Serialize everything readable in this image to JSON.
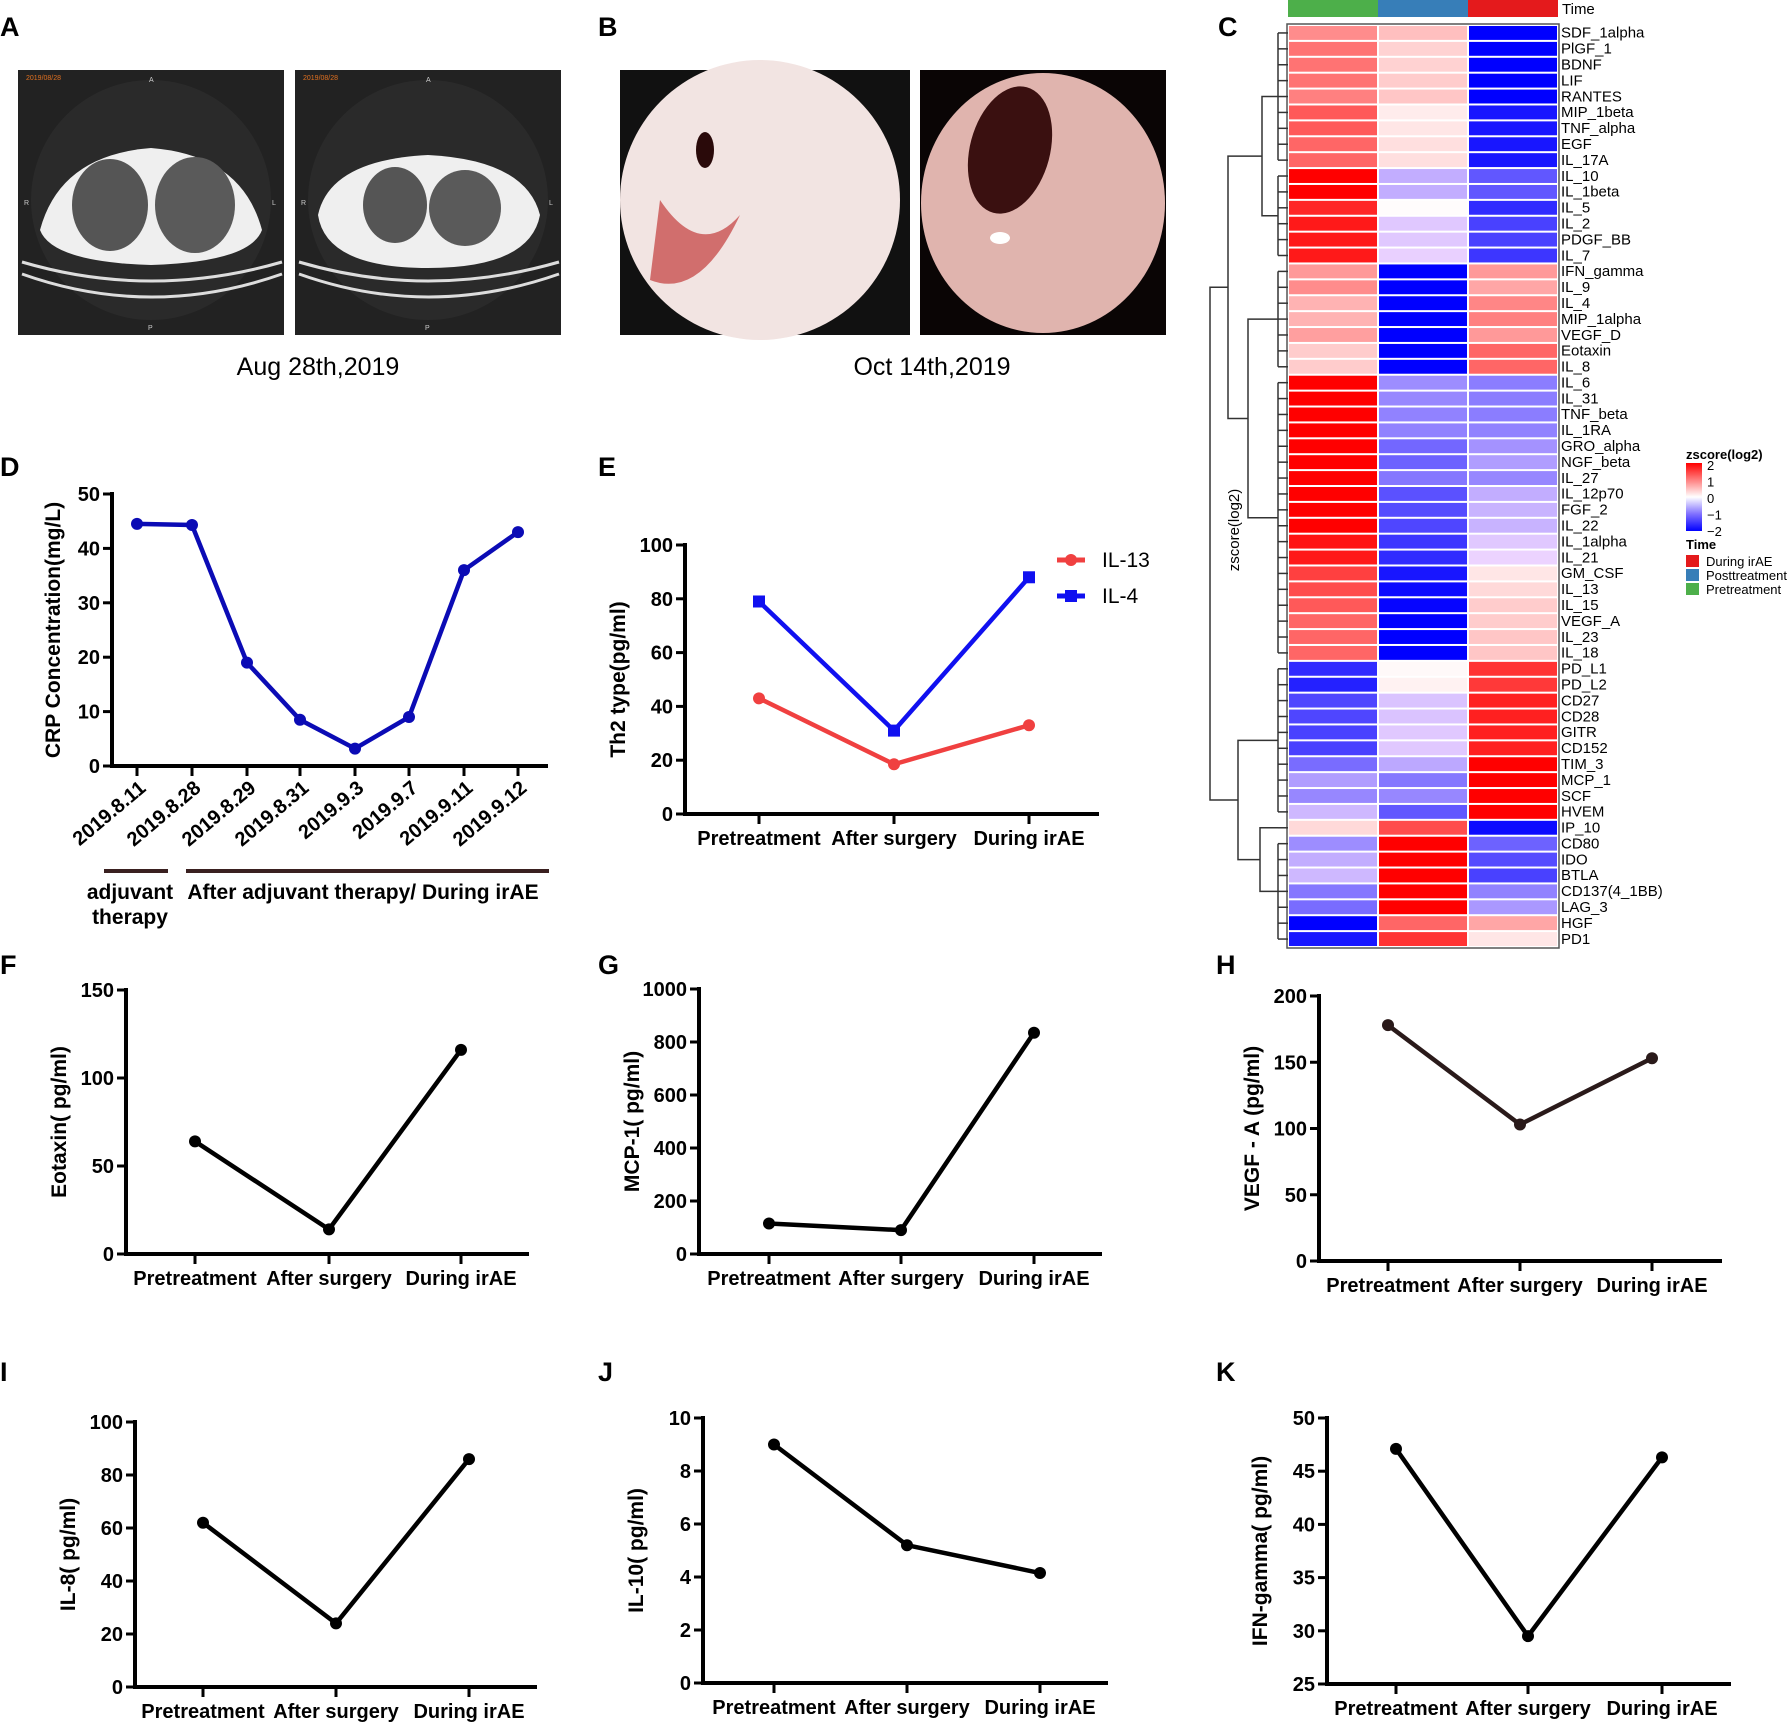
{
  "panels": {
    "A": "A",
    "B": "B",
    "C": "C",
    "D": "D",
    "E": "E",
    "F": "F",
    "G": "G",
    "H": "H",
    "I": "I",
    "J": "J",
    "K": "K"
  },
  "panel_a": {
    "caption": "Aug 28th,2019",
    "ct_stamp": "2019/08/28",
    "orient": {
      "top": "A",
      "bottom": "P",
      "left": "R",
      "right": "L"
    }
  },
  "panel_b": {
    "caption": "Oct 14th,2019"
  },
  "heatmap": {
    "time_header": "Time",
    "side_label": "zscore(log2)",
    "columns": [
      "Pretreatment",
      "Posttreatment",
      "During irAE"
    ],
    "column_colors": [
      "#4daf4a",
      "#377eb8",
      "#e41a1c"
    ],
    "legend_title": "zscore(log2)",
    "legend_ticks": [
      "2",
      "1",
      "0",
      "−1",
      "−2"
    ],
    "time_legend_title": "Time",
    "time_legend": [
      {
        "label": "During irAE",
        "color": "#e41a1c"
      },
      {
        "label": "Posttreatment",
        "color": "#377eb8"
      },
      {
        "label": "Pretreatment",
        "color": "#4daf4a"
      }
    ],
    "rows": [
      {
        "name": "SDF_1alpha",
        "z": [
          0.9,
          0.5,
          -2
        ]
      },
      {
        "name": "PlGF_1",
        "z": [
          1.1,
          0.35,
          -2
        ]
      },
      {
        "name": "BDNF",
        "z": [
          1.1,
          0.35,
          -2
        ]
      },
      {
        "name": "LIF",
        "z": [
          1.1,
          0.4,
          -2
        ]
      },
      {
        "name": "RANTES",
        "z": [
          1.0,
          0.45,
          -2
        ]
      },
      {
        "name": "MIP_1beta",
        "z": [
          1.3,
          0.15,
          -1.8
        ]
      },
      {
        "name": "TNF_alpha",
        "z": [
          1.3,
          0.2,
          -1.8
        ]
      },
      {
        "name": "EGF",
        "z": [
          1.2,
          0.25,
          -1.8
        ]
      },
      {
        "name": "IL_17A",
        "z": [
          1.2,
          0.25,
          -1.8
        ]
      },
      {
        "name": "IL_10",
        "z": [
          2,
          -0.4,
          -1.2
        ]
      },
      {
        "name": "IL_1beta",
        "z": [
          2,
          -0.4,
          -1.2
        ]
      },
      {
        "name": "IL_5",
        "z": [
          1.7,
          0.02,
          -1.6
        ]
      },
      {
        "name": "IL_2",
        "z": [
          1.8,
          -0.15,
          -1.4
        ]
      },
      {
        "name": "PDGF_BB",
        "z": [
          1.8,
          -0.15,
          -1.4
        ]
      },
      {
        "name": "IL_7",
        "z": [
          1.8,
          -0.08,
          -1.5
        ]
      },
      {
        "name": "IFN_gamma",
        "z": [
          0.8,
          -2,
          0.8
        ]
      },
      {
        "name": "IL_9",
        "z": [
          0.9,
          -2,
          0.7
        ]
      },
      {
        "name": "IL_4",
        "z": [
          0.6,
          -2,
          0.95
        ]
      },
      {
        "name": "MIP_1alpha",
        "z": [
          0.6,
          -2,
          1.0
        ]
      },
      {
        "name": "VEGF_D",
        "z": [
          0.75,
          -2,
          0.8
        ]
      },
      {
        "name": "Eotaxin",
        "z": [
          0.4,
          -2,
          1.2
        ]
      },
      {
        "name": "IL_8",
        "z": [
          0.4,
          -2,
          1.2
        ]
      },
      {
        "name": "IL_6",
        "z": [
          2,
          -0.7,
          -0.85
        ]
      },
      {
        "name": "IL_31",
        "z": [
          2,
          -0.75,
          -0.85
        ]
      },
      {
        "name": "TNF_beta",
        "z": [
          2,
          -0.8,
          -0.85
        ]
      },
      {
        "name": "IL_1RA",
        "z": [
          2,
          -0.8,
          -0.8
        ]
      },
      {
        "name": "GRO_alpha",
        "z": [
          2,
          -1.05,
          -0.65
        ]
      },
      {
        "name": "NGF_beta",
        "z": [
          2,
          -1.1,
          -0.55
        ]
      },
      {
        "name": "IL_27",
        "z": [
          2,
          -0.9,
          -0.75
        ]
      },
      {
        "name": "IL_12p70",
        "z": [
          2,
          -1.25,
          -0.4
        ]
      },
      {
        "name": "FGF_2",
        "z": [
          2,
          -1.3,
          -0.35
        ]
      },
      {
        "name": "IL_22",
        "z": [
          2,
          -1.35,
          -0.35
        ]
      },
      {
        "name": "IL_1alpha",
        "z": [
          1.85,
          -1.5,
          -0.15
        ]
      },
      {
        "name": "IL_21",
        "z": [
          1.8,
          -1.6,
          -0.05
        ]
      },
      {
        "name": "GM_CSF",
        "z": [
          1.5,
          -1.8,
          0.2
        ]
      },
      {
        "name": "IL_13",
        "z": [
          1.4,
          -1.9,
          0.3
        ]
      },
      {
        "name": "IL_15",
        "z": [
          1.3,
          -1.95,
          0.4
        ]
      },
      {
        "name": "VEGF_A",
        "z": [
          1.2,
          -2,
          0.4
        ]
      },
      {
        "name": "IL_23",
        "z": [
          1.2,
          -2,
          0.45
        ]
      },
      {
        "name": "IL_18",
        "z": [
          1.2,
          -2,
          0.45
        ]
      },
      {
        "name": "PD_L1",
        "z": [
          -1.6,
          0.05,
          1.6
        ]
      },
      {
        "name": "PD_L2",
        "z": [
          -1.7,
          0.1,
          1.55
        ]
      },
      {
        "name": "CD27",
        "z": [
          -1.35,
          -0.2,
          1.75
        ]
      },
      {
        "name": "CD28",
        "z": [
          -1.35,
          -0.2,
          1.75
        ]
      },
      {
        "name": "GITR",
        "z": [
          -1.4,
          -0.15,
          1.75
        ]
      },
      {
        "name": "CD152",
        "z": [
          -1.4,
          -0.15,
          1.75
        ]
      },
      {
        "name": "TIM_3",
        "z": [
          -1.0,
          -0.45,
          2
        ]
      },
      {
        "name": "MCP_1",
        "z": [
          -0.55,
          -0.9,
          2
        ]
      },
      {
        "name": "SCF",
        "z": [
          -0.75,
          -0.75,
          2
        ]
      },
      {
        "name": "HVEM",
        "z": [
          -0.3,
          -1.2,
          2
        ]
      },
      {
        "name": "IP_10",
        "z": [
          0.3,
          1.4,
          -1.9
        ]
      },
      {
        "name": "CD80",
        "z": [
          -0.7,
          2,
          -1.1
        ]
      },
      {
        "name": "IDO",
        "z": [
          -0.4,
          2,
          -1.3
        ]
      },
      {
        "name": "BTLA",
        "z": [
          -0.3,
          2,
          -1.4
        ]
      },
      {
        "name": "CD137(4_1BB)",
        "z": [
          -0.9,
          2,
          -0.8
        ]
      },
      {
        "name": "LAG_3",
        "z": [
          -1.0,
          2,
          -0.6
        ]
      },
      {
        "name": "HGF",
        "z": [
          -2,
          1.2,
          0.7
        ]
      },
      {
        "name": "PD1",
        "z": [
          -1.8,
          1.6,
          0.2
        ]
      }
    ]
  },
  "chart_data": [
    {
      "id": "D",
      "type": "line",
      "title": "",
      "ylabel": "CRP Concentration(mg/L)",
      "xlabel": "",
      "categories": [
        "2019.8.11",
        "2019.8.28",
        "2019.8.29",
        "2019.8.31",
        "2019.9.3",
        "2019.9.7",
        "2019.9.11",
        "2019.9.12"
      ],
      "ylim": [
        0,
        50
      ],
      "yticks": [
        0,
        10,
        20,
        30,
        40,
        50
      ],
      "series": [
        {
          "name": "CRP",
          "color": "#0b0bb5",
          "marker": "circle",
          "values": [
            44.5,
            44.3,
            19,
            8.5,
            3.2,
            9,
            36,
            43
          ]
        }
      ],
      "groups": [
        {
          "label_lines": [
            "adjuvant",
            "therapy"
          ]
        },
        {
          "label_lines": [
            "After adjuvant therapy/ During irAE"
          ]
        }
      ]
    },
    {
      "id": "E",
      "type": "line",
      "ylabel": "Th2 type(pg/ml)",
      "categories": [
        "Pretreatment",
        "After surgery",
        "During irAE"
      ],
      "ylim": [
        0,
        100
      ],
      "yticks": [
        0,
        20,
        40,
        60,
        80,
        100
      ],
      "legend": "top-right",
      "series": [
        {
          "name": "IL-13",
          "color": "#f04040",
          "marker": "circle",
          "values": [
            43,
            18.5,
            33
          ]
        },
        {
          "name": "IL-4",
          "color": "#1010f0",
          "marker": "square",
          "values": [
            79,
            31,
            88
          ]
        }
      ]
    },
    {
      "id": "F",
      "type": "line",
      "ylabel": "Eotaxin( pg/ml)",
      "categories": [
        "Pretreatment",
        "After surgery",
        "During irAE"
      ],
      "ylim": [
        0,
        150
      ],
      "yticks": [
        0,
        50,
        100,
        150
      ],
      "series": [
        {
          "name": "Eotaxin",
          "color": "#000000",
          "marker": "circle",
          "values": [
            64,
            14,
            116
          ]
        }
      ]
    },
    {
      "id": "G",
      "type": "line",
      "ylabel": "MCP-1( pg/ml)",
      "categories": [
        "Pretreatment",
        "After surgery",
        "During irAE"
      ],
      "ylim": [
        0,
        1000
      ],
      "yticks": [
        0,
        200,
        400,
        600,
        800,
        1000
      ],
      "series": [
        {
          "name": "MCP-1",
          "color": "#000000",
          "marker": "circle",
          "values": [
            115,
            90,
            835
          ]
        }
      ]
    },
    {
      "id": "H",
      "type": "line",
      "ylabel": "VEGF - A (pg/ml)",
      "categories": [
        "Pretreatment",
        "After surgery",
        "During irAE"
      ],
      "ylim": [
        0,
        200
      ],
      "yticks": [
        0,
        50,
        100,
        150,
        200
      ],
      "series": [
        {
          "name": "VEGF-A",
          "color": "#2a1a1a",
          "marker": "circle",
          "values": [
            178,
            103,
            153
          ]
        }
      ]
    },
    {
      "id": "I",
      "type": "line",
      "ylabel": "IL-8( pg/ml)",
      "categories": [
        "Pretreatment",
        "After surgery",
        "During irAE"
      ],
      "ylim": [
        0,
        100
      ],
      "yticks": [
        0,
        20,
        40,
        60,
        80,
        100
      ],
      "series": [
        {
          "name": "IL-8",
          "color": "#000000",
          "marker": "circle",
          "values": [
            62,
            24,
            86
          ]
        }
      ]
    },
    {
      "id": "J",
      "type": "line",
      "ylabel": "IL-10( pg/ml)",
      "categories": [
        "Pretreatment",
        "After surgery",
        "During irAE"
      ],
      "ylim": [
        0,
        10
      ],
      "yticks": [
        0,
        2,
        4,
        6,
        8,
        10
      ],
      "series": [
        {
          "name": "IL-10",
          "color": "#000000",
          "marker": "circle",
          "values": [
            9.0,
            5.2,
            4.15
          ]
        }
      ]
    },
    {
      "id": "K",
      "type": "line",
      "ylabel": "IFN-gamma( pg/ml)",
      "categories": [
        "Pretreatment",
        "After surgery",
        "During irAE"
      ],
      "ylim": [
        25,
        50
      ],
      "yticks": [
        25,
        30,
        35,
        40,
        45,
        50
      ],
      "series": [
        {
          "name": "IFN-gamma",
          "color": "#000000",
          "marker": "circle",
          "values": [
            47.1,
            29.5,
            46.3
          ]
        }
      ]
    }
  ]
}
